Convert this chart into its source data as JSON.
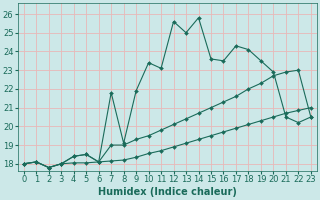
{
  "xlabel": "Humidex (Indice chaleur)",
  "bg_color": "#cce8e8",
  "grid_color": "#e8b8b8",
  "line_color": "#1a6b5a",
  "x_ticks": [
    0,
    1,
    2,
    3,
    4,
    5,
    6,
    7,
    8,
    9,
    10,
    11,
    12,
    13,
    14,
    15,
    16,
    17,
    18,
    19,
    20,
    21,
    22,
    23
  ],
  "y_ticks": [
    18,
    19,
    20,
    21,
    22,
    23,
    24,
    25,
    26
  ],
  "xlim": [
    -0.5,
    23.5
  ],
  "ylim": [
    17.6,
    26.6
  ],
  "line1_x": [
    0,
    1,
    2,
    3,
    4,
    5,
    6,
    7,
    8,
    9,
    10,
    11,
    12,
    13,
    14,
    15,
    16,
    17,
    18,
    19,
    20,
    21,
    22,
    23
  ],
  "line1_y": [
    18.0,
    18.1,
    17.8,
    18.0,
    18.05,
    18.05,
    18.1,
    18.15,
    18.2,
    18.35,
    18.55,
    18.7,
    18.9,
    19.1,
    19.3,
    19.5,
    19.7,
    19.9,
    20.1,
    20.3,
    20.5,
    20.7,
    20.85,
    21.0
  ],
  "line2_x": [
    0,
    1,
    2,
    3,
    4,
    5,
    6,
    7,
    8,
    9,
    10,
    11,
    12,
    13,
    14,
    15,
    16,
    17,
    18,
    19,
    20,
    21,
    22,
    23
  ],
  "line2_y": [
    18.0,
    18.1,
    17.8,
    18.0,
    18.4,
    18.5,
    18.1,
    21.8,
    19.1,
    21.9,
    23.4,
    23.1,
    25.6,
    25.0,
    25.8,
    23.6,
    23.5,
    24.3,
    24.1,
    23.5,
    22.9,
    20.5,
    20.2,
    20.5
  ],
  "line3_x": [
    0,
    1,
    2,
    3,
    4,
    5,
    6,
    7,
    8,
    9,
    10,
    11,
    12,
    13,
    14,
    15,
    16,
    17,
    18,
    19,
    20,
    21,
    22,
    23
  ],
  "line3_y": [
    18.0,
    18.1,
    17.8,
    18.0,
    18.4,
    18.5,
    18.1,
    19.0,
    19.0,
    19.3,
    19.5,
    19.8,
    20.1,
    20.4,
    20.7,
    21.0,
    21.3,
    21.6,
    22.0,
    22.3,
    22.7,
    22.9,
    23.0,
    20.5
  ],
  "marker": "D",
  "markersize": 2.0,
  "linewidth": 0.8,
  "font_size": 6,
  "xlabel_fontsize": 7
}
